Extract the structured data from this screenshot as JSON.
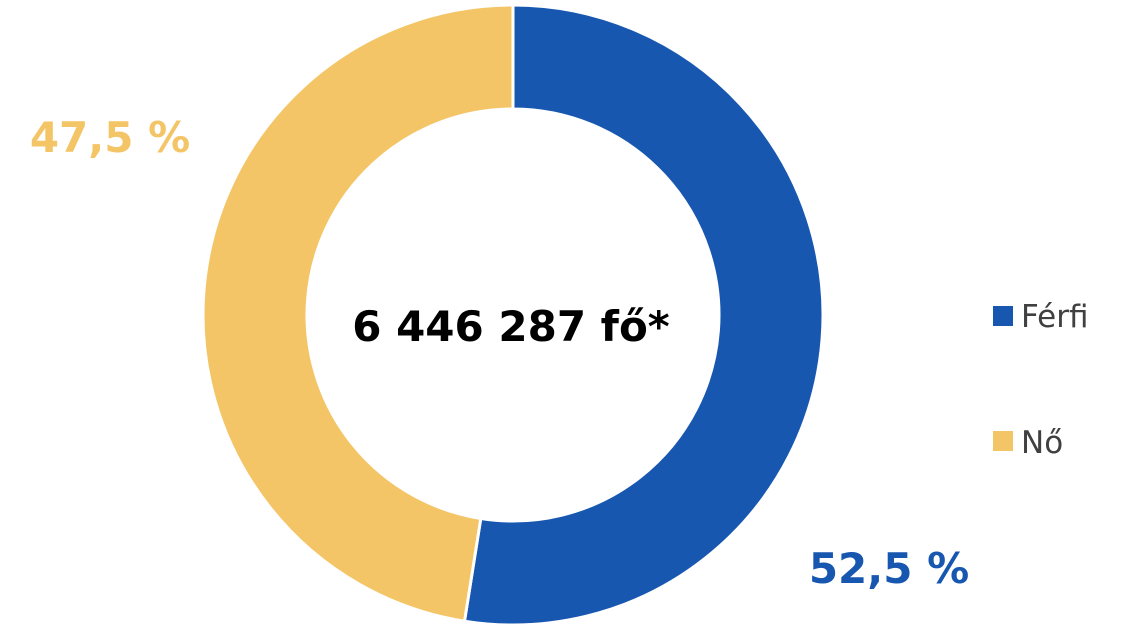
{
  "chart_data": {
    "type": "pie",
    "subtype": "donut",
    "center_label": "6 446 287 fő*",
    "categories": [
      "Férfi",
      "Nő"
    ],
    "values": [
      52.5,
      47.5
    ],
    "data_labels": [
      "52,5 %",
      "47,5 %"
    ],
    "colors": [
      "#1857b0",
      "#f4c566"
    ],
    "legend": {
      "placement": "right",
      "entries": [
        "Férfi",
        "Nő"
      ]
    }
  }
}
